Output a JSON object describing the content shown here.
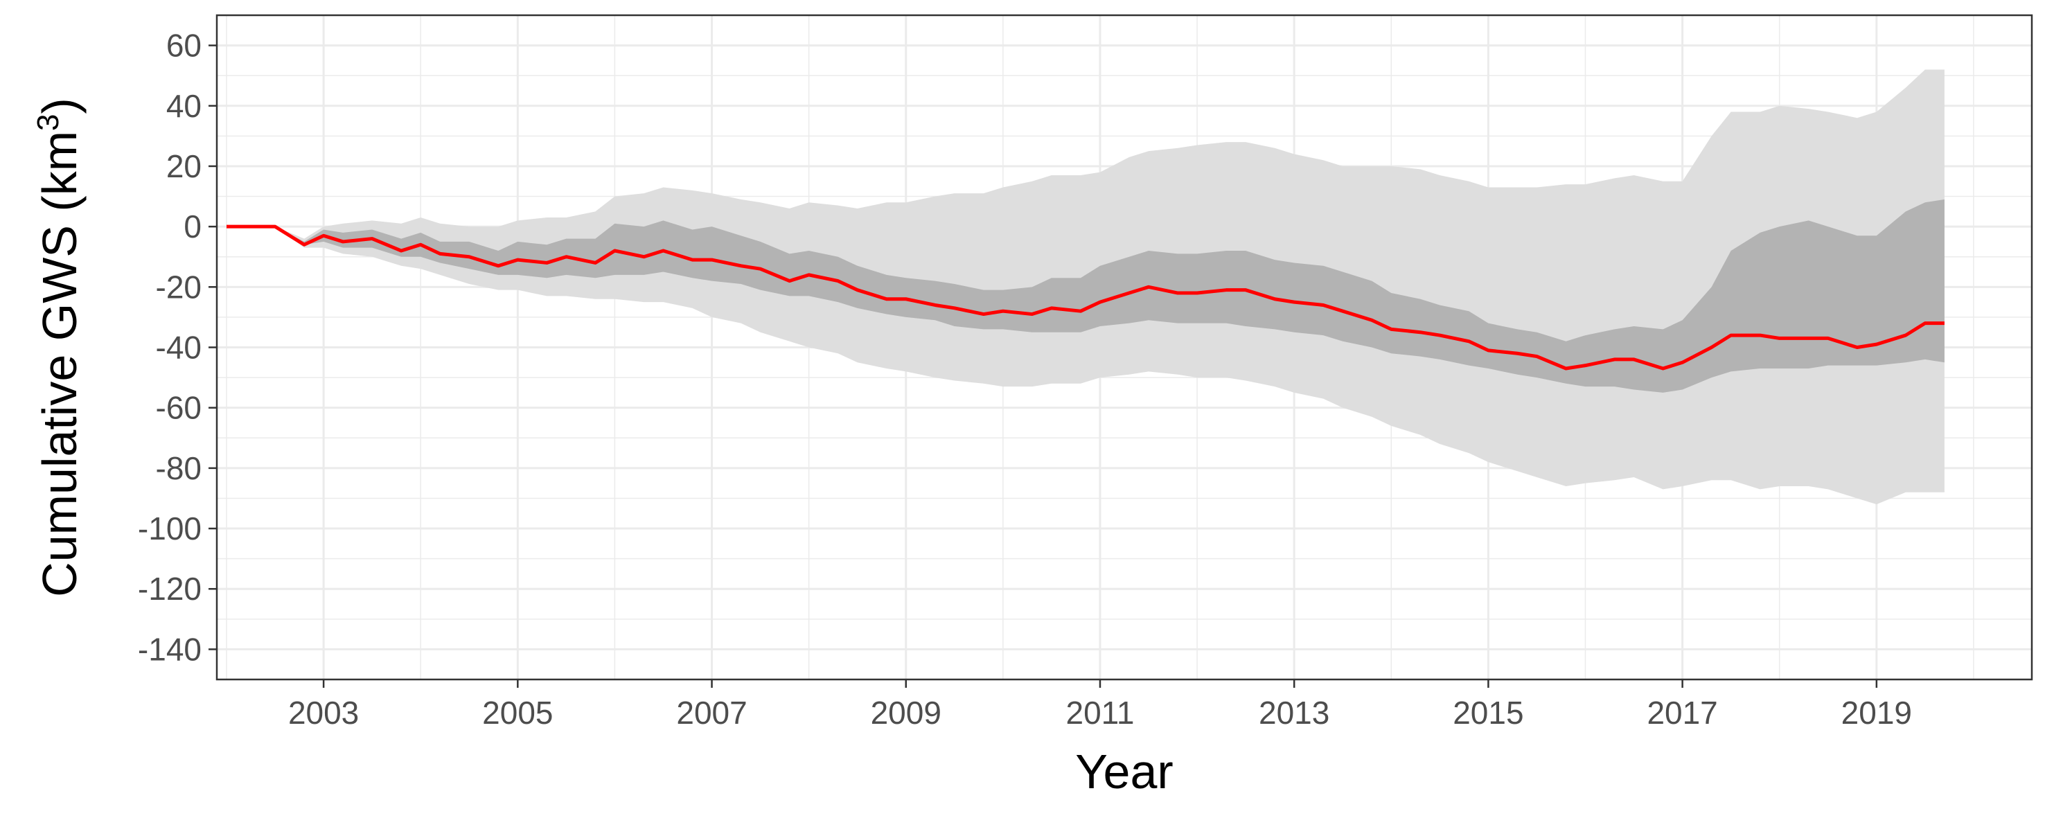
{
  "chart_data": {
    "type": "area",
    "title": "",
    "xlabel": "Year",
    "ylabel": "Cumulative GWS (km",
    "ylabel_superscript": "3",
    "ylabel_suffix": ")",
    "xlim": [
      2001.9,
      2020.6
    ],
    "ylim": [
      -150,
      70
    ],
    "x_ticks": [
      2003,
      2005,
      2007,
      2009,
      2011,
      2013,
      2015,
      2017,
      2019
    ],
    "x_tick_labels": [
      "2003",
      "2005",
      "2007",
      "2009",
      "2011",
      "2013",
      "2015",
      "2017",
      "2019"
    ],
    "y_ticks": [
      60,
      40,
      20,
      0,
      -20,
      -40,
      -60,
      -80,
      -100,
      -120,
      -140
    ],
    "y_tick_labels": [
      "60",
      "40",
      "20",
      "0",
      "-20",
      "-40",
      "-60",
      "-80",
      "-100",
      "-120",
      "-140"
    ],
    "grid": true,
    "colors": {
      "line": "#ff0000",
      "inner_band": "#b3b3b3",
      "outer_band": "#dedede",
      "grid": "#ebebeb",
      "frame": "#333333"
    },
    "x": [
      2002.0,
      2002.5,
      2002.8,
      2003.0,
      2003.2,
      2003.5,
      2003.8,
      2004.0,
      2004.2,
      2004.5,
      2004.8,
      2005.0,
      2005.3,
      2005.5,
      2005.8,
      2006.0,
      2006.3,
      2006.5,
      2006.8,
      2007.0,
      2007.3,
      2007.5,
      2007.8,
      2008.0,
      2008.3,
      2008.5,
      2008.8,
      2009.0,
      2009.3,
      2009.5,
      2009.8,
      2010.0,
      2010.3,
      2010.5,
      2010.8,
      2011.0,
      2011.3,
      2011.5,
      2011.8,
      2012.0,
      2012.3,
      2012.5,
      2012.8,
      2013.0,
      2013.3,
      2013.5,
      2013.8,
      2014.0,
      2014.3,
      2014.5,
      2014.8,
      2015.0,
      2015.3,
      2015.5,
      2015.8,
      2016.0,
      2016.3,
      2016.5,
      2016.8,
      2017.0,
      2017.3,
      2017.5,
      2017.8,
      2018.0,
      2018.3,
      2018.5,
      2018.8,
      2019.0,
      2019.3,
      2019.5,
      2019.7
    ],
    "series": [
      {
        "mean": [
          0,
          0,
          -6,
          -3,
          -5,
          -4,
          -8,
          -6,
          -9,
          -10,
          -13,
          -11,
          -12,
          -10,
          -12,
          -8,
          -10,
          -8,
          -11,
          -11,
          -13,
          -14,
          -18,
          -16,
          -18,
          -21,
          -24,
          -24,
          -26,
          -27,
          -29,
          -28,
          -29,
          -27,
          -28,
          -25,
          -22,
          -20,
          -22,
          -22,
          -21,
          -21,
          -24,
          -25,
          -26,
          -28,
          -31,
          -34,
          -35,
          -36,
          -38,
          -41,
          -42,
          -43,
          -47,
          -46,
          -44,
          -44,
          -47,
          -45,
          -40,
          -36,
          -36,
          -37,
          -37,
          -37,
          -40,
          -39,
          -36,
          -32,
          -32
        ],
        "inner_lower": [
          0,
          0,
          -6,
          -5,
          -7,
          -7,
          -10,
          -10,
          -12,
          -14,
          -16,
          -16,
          -17,
          -16,
          -17,
          -16,
          -16,
          -15,
          -17,
          -18,
          -19,
          -21,
          -23,
          -23,
          -25,
          -27,
          -29,
          -30,
          -31,
          -33,
          -34,
          -34,
          -35,
          -35,
          -35,
          -33,
          -32,
          -31,
          -32,
          -32,
          -32,
          -33,
          -34,
          -35,
          -36,
          -38,
          -40,
          -42,
          -43,
          -44,
          -46,
          -47,
          -49,
          -50,
          -52,
          -53,
          -53,
          -54,
          -55,
          -54,
          -50,
          -48,
          -47,
          -47,
          -47,
          -46,
          -46,
          -46,
          -45,
          -44,
          -45
        ],
        "inner_upper": [
          0,
          0,
          -5,
          -1,
          -2,
          -1,
          -4,
          -2,
          -5,
          -5,
          -8,
          -5,
          -6,
          -4,
          -4,
          1,
          0,
          2,
          -1,
          0,
          -3,
          -5,
          -9,
          -8,
          -10,
          -13,
          -16,
          -17,
          -18,
          -19,
          -21,
          -21,
          -20,
          -17,
          -17,
          -13,
          -10,
          -8,
          -9,
          -9,
          -8,
          -8,
          -11,
          -12,
          -13,
          -15,
          -18,
          -22,
          -24,
          -26,
          -28,
          -32,
          -34,
          -35,
          -38,
          -36,
          -34,
          -33,
          -34,
          -31,
          -20,
          -8,
          -2,
          0,
          2,
          0,
          -3,
          -3,
          5,
          8,
          9
        ],
        "outer_lower": [
          0,
          0,
          -7,
          -7,
          -9,
          -10,
          -13,
          -14,
          -16,
          -19,
          -21,
          -21,
          -23,
          -23,
          -24,
          -24,
          -25,
          -25,
          -27,
          -30,
          -32,
          -35,
          -38,
          -40,
          -42,
          -45,
          -47,
          -48,
          -50,
          -51,
          -52,
          -53,
          -53,
          -52,
          -52,
          -50,
          -49,
          -48,
          -49,
          -50,
          -50,
          -51,
          -53,
          -55,
          -57,
          -60,
          -63,
          -66,
          -69,
          -72,
          -75,
          -78,
          -81,
          -83,
          -86,
          -85,
          -84,
          -83,
          -87,
          -86,
          -84,
          -84,
          -87,
          -86,
          -86,
          -87,
          -90,
          -92,
          -88,
          -88,
          -88
        ],
        "outer_upper": [
          0,
          0,
          -4,
          0,
          1,
          2,
          1,
          3,
          1,
          0,
          0,
          2,
          3,
          3,
          5,
          10,
          11,
          13,
          12,
          11,
          9,
          8,
          6,
          8,
          7,
          6,
          8,
          8,
          10,
          11,
          11,
          13,
          15,
          17,
          17,
          18,
          23,
          25,
          26,
          27,
          28,
          28,
          26,
          24,
          22,
          20,
          20,
          20,
          19,
          17,
          15,
          13,
          13,
          13,
          14,
          14,
          16,
          17,
          15,
          15,
          30,
          38,
          38,
          40,
          39,
          38,
          36,
          38,
          46,
          52,
          52
        ]
      }
    ]
  }
}
